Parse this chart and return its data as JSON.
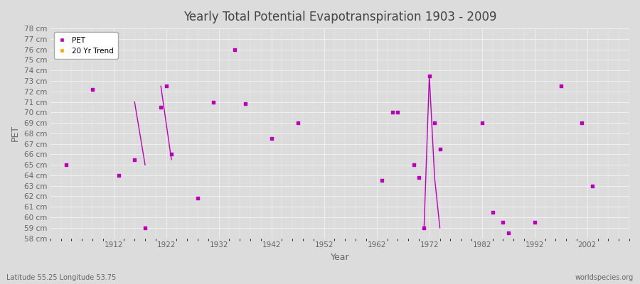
{
  "title": "Yearly Total Potential Evapotranspiration 1903 - 2009",
  "xlabel": "Year",
  "ylabel": "PET",
  "subtitle_lat": "Latitude 55.25 Longitude 53.75",
  "watermark": "worldspecies.org",
  "ylim": [
    58,
    78
  ],
  "xlim": [
    1900,
    2010
  ],
  "xticks": [
    1912,
    1922,
    1932,
    1942,
    1952,
    1962,
    1972,
    1982,
    1992,
    2002
  ],
  "pet_color": "#bb00bb",
  "trend_color": "#ffa500",
  "bg_color": "#dcdcdc",
  "grid_color": "#f0f0f0",
  "pet_data": [
    [
      1903,
      65.0
    ],
    [
      1908,
      72.2
    ],
    [
      1913,
      64.0
    ],
    [
      1916,
      65.5
    ],
    [
      1918,
      59.0
    ],
    [
      1921,
      70.5
    ],
    [
      1922,
      72.5
    ],
    [
      1923,
      66.0
    ],
    [
      1928,
      61.8
    ],
    [
      1931,
      71.0
    ],
    [
      1935,
      76.0
    ],
    [
      1937,
      70.8
    ],
    [
      1942,
      67.5
    ],
    [
      1947,
      69.0
    ],
    [
      1963,
      63.5
    ],
    [
      1965,
      70.0
    ],
    [
      1966,
      70.0
    ],
    [
      1969,
      65.0
    ],
    [
      1970,
      63.8
    ],
    [
      1971,
      59.0
    ],
    [
      1972,
      73.5
    ],
    [
      1973,
      69.0
    ],
    [
      1974,
      66.5
    ],
    [
      1982,
      69.0
    ],
    [
      1984,
      60.5
    ],
    [
      1986,
      59.5
    ],
    [
      1987,
      58.5
    ],
    [
      1992,
      59.5
    ],
    [
      1997,
      72.5
    ],
    [
      2001,
      69.0
    ],
    [
      2003,
      63.0
    ]
  ],
  "trend_segments": [
    [
      [
        1916,
        71.0
      ],
      [
        1918,
        65.0
      ]
    ],
    [
      [
        1921,
        72.5
      ],
      [
        1923,
        65.5
      ]
    ],
    [
      [
        1971,
        59.0
      ],
      [
        1972,
        73.5
      ],
      [
        1973,
        63.8
      ],
      [
        1974,
        59.0
      ]
    ]
  ],
  "ytick_labels": [
    58,
    59,
    60,
    61,
    62,
    63,
    64,
    65,
    66,
    67,
    68,
    69,
    70,
    71,
    72,
    73,
    74,
    75,
    76,
    77,
    78
  ]
}
